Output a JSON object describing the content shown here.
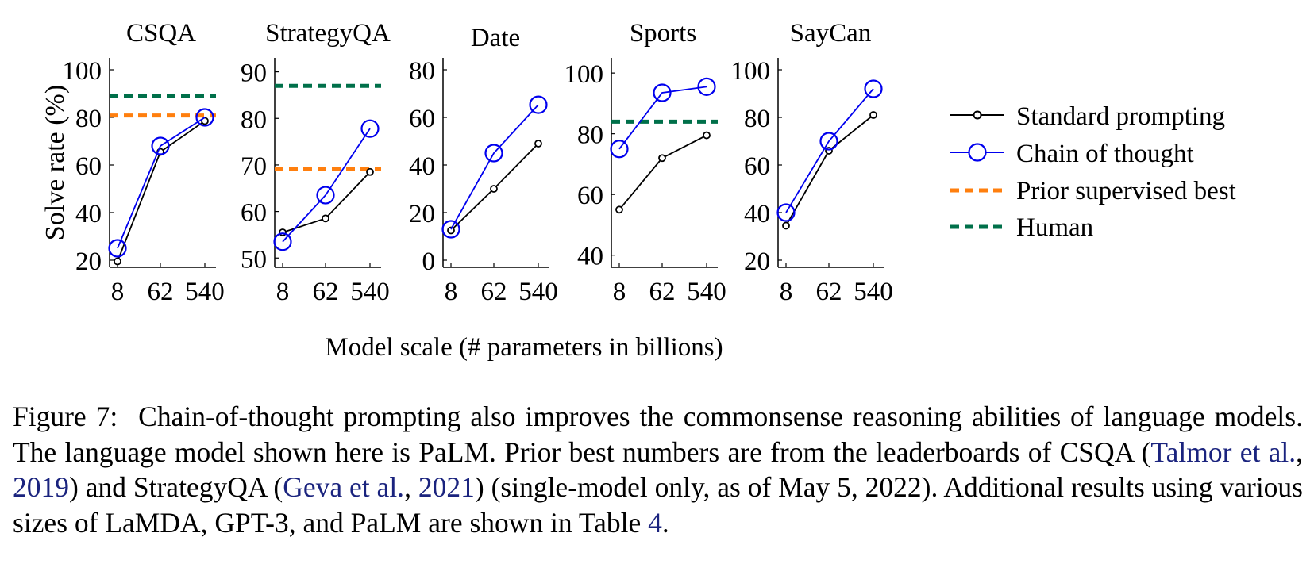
{
  "figure": {
    "ylabel": "Solve rate (%)",
    "xlabel": "Model scale (# parameters in billions)"
  },
  "legend": [
    {
      "label": "Standard prompting",
      "style": "standard"
    },
    {
      "label": "Chain of thought",
      "style": "cot"
    },
    {
      "label": "Prior supervised best",
      "style": "prior"
    },
    {
      "label": "Human",
      "style": "human"
    }
  ],
  "colors": {
    "standard": "#000000",
    "cot": "#0000ee",
    "prior": "#ff7f0e",
    "human": "#00704a"
  },
  "chart_data": [
    {
      "type": "line",
      "title": "CSQA",
      "categories": [
        "8",
        "62",
        "540"
      ],
      "ylim": [
        17,
        105
      ],
      "yticks": [
        20,
        40,
        60,
        80,
        100
      ],
      "series": [
        {
          "name": "Standard prompting",
          "values": [
            19.5,
            65.5,
            78.5
          ]
        },
        {
          "name": "Chain of thought",
          "values": [
            25,
            68,
            80
          ]
        }
      ],
      "hlines": [
        {
          "name": "Prior supervised best",
          "value": 80.8
        },
        {
          "name": "Human",
          "value": 89
        }
      ]
    },
    {
      "type": "line",
      "title": "StrategyQA",
      "categories": [
        "8",
        "62",
        "540"
      ],
      "ylim": [
        48,
        93
      ],
      "yticks": [
        50,
        60,
        70,
        80,
        90
      ],
      "series": [
        {
          "name": "Standard prompting",
          "values": [
            55.5,
            58.5,
            68.5
          ]
        },
        {
          "name": "Chain of thought",
          "values": [
            53.5,
            63.5,
            77.8
          ]
        }
      ],
      "hlines": [
        {
          "name": "Prior supervised best",
          "value": 69.2
        },
        {
          "name": "Human",
          "value": 87
        }
      ]
    },
    {
      "type": "line",
      "title": "Date",
      "categories": [
        "8",
        "62",
        "540"
      ],
      "ylim": [
        -3,
        85
      ],
      "yticks": [
        0,
        20,
        40,
        60,
        80
      ],
      "series": [
        {
          "name": "Standard prompting",
          "values": [
            12.5,
            30,
            49
          ]
        },
        {
          "name": "Chain of thought",
          "values": [
            13,
            45,
            65.3
          ]
        }
      ],
      "hlines": []
    },
    {
      "type": "line",
      "title": "Sports",
      "categories": [
        "8",
        "62",
        "540"
      ],
      "ylim": [
        36,
        105
      ],
      "yticks": [
        40,
        60,
        80,
        100
      ],
      "series": [
        {
          "name": "Standard prompting",
          "values": [
            55,
            72,
            79.5
          ]
        },
        {
          "name": "Chain of thought",
          "values": [
            75,
            93.5,
            95.5
          ]
        }
      ],
      "hlines": [
        {
          "name": "Human",
          "value": 84
        }
      ]
    },
    {
      "type": "line",
      "title": "SayCan",
      "categories": [
        "8",
        "62",
        "540"
      ],
      "ylim": [
        17,
        105
      ],
      "yticks": [
        20,
        40,
        60,
        80,
        100
      ],
      "series": [
        {
          "name": "Standard prompting",
          "values": [
            34.5,
            66,
            81
          ]
        },
        {
          "name": "Chain of thought",
          "values": [
            40,
            70,
            92
          ]
        }
      ],
      "hlines": []
    }
  ],
  "caption": {
    "fig_num": "Figure 7:",
    "text_1": "Chain-of-thought prompting also improves the commonsense reasoning abilities of language models. The language model shown here is PaLM. Prior best numbers are from the leaderboards of CSQA (",
    "cite_1_authors": "Talmor et al.",
    "cite_sep_1": ", ",
    "cite_1_year": "2019",
    "text_2": ") and StrategyQA (",
    "cite_2_authors": "Geva et al.",
    "cite_sep_2": ", ",
    "cite_2_year": "2021",
    "text_3": ") (single-model only, as of May 5, 2022). Additional results using various sizes of LaMDA, GPT-3, and PaLM are shown in Table ",
    "table_ref": "4",
    "text_end": "."
  }
}
